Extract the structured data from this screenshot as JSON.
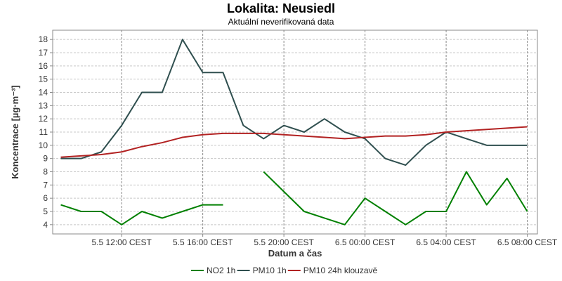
{
  "chart_data": {
    "type": "line",
    "title": "Lokalita: Neusiedl",
    "subtitle": "Aktuální neverifikovaná data",
    "xlabel": "Datum a čas",
    "ylabel": "Koncentrace [µg·m⁻³]",
    "ylim": [
      3.3,
      18.7
    ],
    "y_ticks": [
      4,
      5,
      6,
      7,
      8,
      9,
      10,
      11,
      12,
      13,
      14,
      15,
      16,
      17,
      18
    ],
    "x_ticks": [
      {
        "x": 3,
        "label": "5.5 12:00 CEST"
      },
      {
        "x": 7,
        "label": "5.5 16:00 CEST"
      },
      {
        "x": 11,
        "label": "5.5 20:00 CEST"
      },
      {
        "x": 15,
        "label": "6.5 00:00 CEST"
      },
      {
        "x": 19,
        "label": "6.5 04:00 CEST"
      },
      {
        "x": 23,
        "label": "6.5 08:00 CEST"
      }
    ],
    "xlim": [
      -0.4,
      23.5
    ],
    "grid": true,
    "legend_position": "bottom",
    "series": [
      {
        "name": "NO2 1h",
        "color": "#008000",
        "values": [
          5.5,
          5.0,
          5.0,
          4.0,
          5.0,
          4.5,
          5.0,
          5.5,
          5.5,
          null,
          8.0,
          6.5,
          5.0,
          4.5,
          4.0,
          6.0,
          5.0,
          4.0,
          5.0,
          5.0,
          8.0,
          5.5,
          7.5,
          5.0
        ]
      },
      {
        "name": "PM10 1h",
        "color": "#2f4f4f",
        "values": [
          9.0,
          9.0,
          9.5,
          11.5,
          14.0,
          14.0,
          18.0,
          15.5,
          15.5,
          11.5,
          10.5,
          11.5,
          11.0,
          12.0,
          11.0,
          10.5,
          9.0,
          8.5,
          10.0,
          11.0,
          10.5,
          10.0,
          10.0,
          10.0
        ]
      },
      {
        "name": "PM10 24h klouzavě",
        "color": "#b22222",
        "values": [
          9.1,
          9.2,
          9.3,
          9.5,
          9.9,
          10.2,
          10.6,
          10.8,
          10.9,
          10.9,
          10.9,
          10.8,
          10.7,
          10.6,
          10.5,
          10.6,
          10.7,
          10.7,
          10.8,
          11.0,
          11.1,
          11.2,
          11.3,
          11.4
        ]
      }
    ]
  }
}
